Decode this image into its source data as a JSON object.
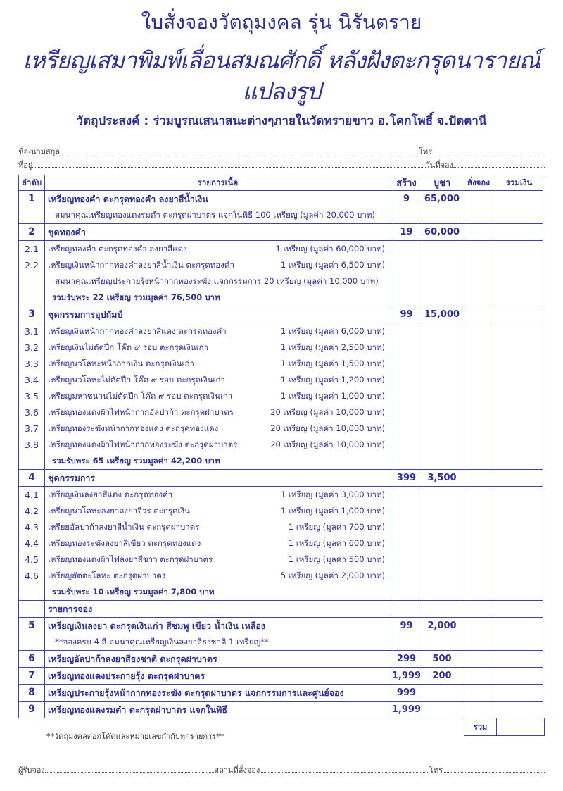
{
  "header": {
    "title": "ใบสั่งจองวัตถุมงคล รุ่น นิรันตราย",
    "subtitle": "เหรียญเสมาพิมพ์เลื่อนสมณศักดิ์ หลังฝังตะกรุดนารายณ์แปลงรูป",
    "purpose": "วัตถุประสงค์ : ร่วมบูรณเสนาสนะต่างๆภายในวัดทรายขาว อ.โคกโพธิ์ จ.ปัตตานี"
  },
  "form": {
    "name_label": "ชื่อ-นามสกุล",
    "phone_label": "โทร",
    "address_label": "ที่อยู่",
    "date_label": "วันที่จอง"
  },
  "table": {
    "headers": [
      "ลำดับ",
      "รายการเนื้อ",
      "สร้าง",
      "บูชา",
      "สั่งจอง",
      "รวมเงิน"
    ],
    "rows": [
      {
        "nums": [
          {
            "t": "1",
            "bold": true
          },
          {
            "t": ""
          }
        ],
        "lines": [
          {
            "text": "เหรียญทองคำ ตะกรุดทองคำ ลงยาสีน้ำเงิน",
            "type": "bold"
          },
          {
            "text": "สมนาคุณเหรียญทองแดงรมดำ ตะกรุดฝาบาตร แจกในพิธี 100 เหรียญ (มูลค่า 20,000 บาท)",
            "type": "ind"
          }
        ],
        "build": "9",
        "price": "65,000"
      },
      {
        "nums": [
          {
            "t": "2",
            "bold": true
          }
        ],
        "lines": [
          {
            "text": "ชุดทองคำ",
            "type": "bold"
          }
        ],
        "build": "19",
        "price": "60,000"
      },
      {
        "nums": [
          {
            "t": "2.1"
          },
          {
            "t": "2.2"
          },
          {
            "t": ""
          },
          {
            "t": ""
          }
        ],
        "lines": [
          {
            "text": "เหรียญทองคำ ตะกรุดทองคำ ลงยาสีแดง",
            "qty": "1 เหรียญ (มูลค่า 60,000 บาท)"
          },
          {
            "text": "เหรียญเงินหน้ากากทองคำลงยาสีน้ำเงิน ตะกรุดทองคำ",
            "qty": "1 เหรียญ (มูลค่า 6,500 บาท)"
          },
          {
            "text": "สมนาคุณเหรียญประกายรุ้งหน้ากากทองระฆัง แจกกรรมการ 20 เหรียญ (มูลค่า 10,000 บาท)",
            "type": "ind"
          },
          {
            "text": "รวมรับพระ 22 เหรียญ รวมมูลค่า 76,500 บาท",
            "type": "sum"
          }
        ],
        "build": "",
        "price": ""
      },
      {
        "nums": [
          {
            "t": "3",
            "bold": true
          }
        ],
        "lines": [
          {
            "text": "ชุดกรรมการอุปถัมป์",
            "type": "bold"
          }
        ],
        "build": "99",
        "price": "15,000"
      },
      {
        "nums": [
          {
            "t": "3.1"
          },
          {
            "t": "3.2"
          },
          {
            "t": "3.3"
          },
          {
            "t": "3.4"
          },
          {
            "t": "3.5"
          },
          {
            "t": "3.6"
          },
          {
            "t": "3.7"
          },
          {
            "t": "3.8"
          },
          {
            "t": ""
          }
        ],
        "lines": [
          {
            "text": "เหรียญเงินหน้ากากทองคำลงยาสีแดง  ตะกรุดทองคำ",
            "qty": "1 เหรียญ (มูลค่า 6,000 บาท)"
          },
          {
            "text": "เหรียญเงินไม่ตัดปีก โค๊ด ๙ รอบ ตะกรุดเงินเก่า",
            "qty": "1 เหรียญ (มูลค่า 2,500 บาท)"
          },
          {
            "text": "เหรียญนวโลหะหน้ากากเงิน ตะกรุดเงินเก่า",
            "qty": "1 เหรียญ (มูลค่า 1,500 บาท)"
          },
          {
            "text": "เหรียญนวโลหะไม่ตัดปีก โค๊ด ๙ รอบ ตะกรุดเงินเก่า",
            "qty": "1 เหรียญ (มูลค่า 1,200 บาท)"
          },
          {
            "text": "เหรียญมหาชนวนไม่ตัดปีก โค๊ด ๙ รอบ ตะกรุดเงินเก่า",
            "qty": "1 เหรียญ (มูลค่า 1,000 บาท)"
          },
          {
            "text": "เหรียญทองแดงผิวไฟหน้ากากอัลปาก้า ตะกรุดฝาบาตร",
            "qty": "20 เหรียญ (มูลค่า 10,000 บาท)"
          },
          {
            "text": "เหรียญทองระฆังหน้ากากทองแดง ตะกรุดทองแดง",
            "qty": "20 เหรียญ (มูลค่า 10,000 บาท)"
          },
          {
            "text": "เหรียญทองแดงผิวไฟหน้ากากทองระฆัง ตะกรุดฝาบาตร",
            "qty": "20 เหรียญ (มูลค่า 10,000 บาท)"
          },
          {
            "text": "รวมรับพระ 65 เหรียญ รวมมูลค่า 42,200 บาท",
            "type": "sum"
          }
        ],
        "build": "",
        "price": ""
      },
      {
        "nums": [
          {
            "t": "4",
            "bold": true
          }
        ],
        "lines": [
          {
            "text": "ชุดกรรมการ",
            "type": "bold"
          }
        ],
        "build": "399",
        "price": "3,500"
      },
      {
        "nums": [
          {
            "t": "4.1"
          },
          {
            "t": "4.2"
          },
          {
            "t": "4.3"
          },
          {
            "t": "4.4"
          },
          {
            "t": "4.5"
          },
          {
            "t": "4.6"
          },
          {
            "t": ""
          }
        ],
        "lines": [
          {
            "text": "เหรียญเงินลงยาสีแดง ตะกรุดทองคำ",
            "qty": "1 เหรียญ (มูลค่า 3,000 บาท)"
          },
          {
            "text": "เหรียญนวโลหะลงยาลงยาจีวร ตะกรุดเงิน",
            "qty": "1 เหรียญ (มูลค่า 1,000 บาท)"
          },
          {
            "text": "เหรียยอัลปาก้าลงยาสีน้ำเงิน ตะกรุดฝาบาตร",
            "qty": "1 เหรียญ (มูลค่า 700 บาท)"
          },
          {
            "text": "เหรียญทองระฆังลงยาสีเขียว ตะกรุดทองแดง",
            "qty": "1 เหรียญ (มูลค่า 600 บาท)"
          },
          {
            "text": "เหรียญทองแดงผิวไฟลงยาสีขาว ตะกรุดฝาบาตร",
            "qty": "1 เหรียญ (มูลค่า 500 บาท)"
          },
          {
            "text": "เหรียญสัตตะโลหะ ตะกรุดฝาบาตร",
            "qty": "5 เหรียญ (มูลค่า 2,000 บาท)"
          },
          {
            "text": "รวมรับพระ 10 เหรียญ รวมมูลค่า 7,800 บาท",
            "type": "sum"
          }
        ],
        "build": "",
        "price": ""
      },
      {
        "nums": [
          {
            "t": ""
          }
        ],
        "lines": [
          {
            "text": "รายการจอง",
            "type": "bold"
          }
        ],
        "build": "",
        "price": ""
      },
      {
        "nums": [
          {
            "t": "5",
            "bold": true
          },
          {
            "t": ""
          }
        ],
        "lines": [
          {
            "text": "เหรียญเงินลงยา ตะกรุดเงินเก่า  สีชมพู  เขียว  น้ำเงิน  เหลือง",
            "type": "bold"
          },
          {
            "text": "**จองครบ 4 สี สมนาคุณเหรียญเงินลงยาสีธงชาติ 1 เหรียญ**",
            "type": "ind"
          }
        ],
        "build": "99",
        "price": "2,000"
      },
      {
        "nums": [
          {
            "t": "6",
            "bold": true
          }
        ],
        "lines": [
          {
            "text": "เหรียญอัลปาก้าลงยาสีธงชาติ ตะกรุดฝาบาตร",
            "type": "bold"
          }
        ],
        "build": "299",
        "price": "500"
      },
      {
        "nums": [
          {
            "t": "7",
            "bold": true
          }
        ],
        "lines": [
          {
            "text": "เหรียญทองแดงประกายรุ้ง ตะกรุดฝาบาตร",
            "type": "bold"
          }
        ],
        "build": "1,999",
        "price": "200"
      },
      {
        "nums": [
          {
            "t": "8",
            "bold": true
          }
        ],
        "lines": [
          {
            "text": "เหรียญประกายรุ้งหน้ากากทองระฆัง ตะกรุดฝาบาตร แจกกรรมการและศูนย์จอง",
            "type": "bold"
          }
        ],
        "build": "999",
        "price": ""
      },
      {
        "nums": [
          {
            "t": "9",
            "bold": true
          }
        ],
        "lines": [
          {
            "text": "เหรียญทองแดงรมดำ ตะกรุดฝาบาตร แจกในพิธี",
            "type": "bold"
          }
        ],
        "build": "1,999",
        "price": ""
      }
    ],
    "total_label": "รวม"
  },
  "footer": {
    "note": "**วัตถุมงคลตอกโค๊ดและหมายเลขกำกับทุกรายการ**",
    "receiver_label": "ผู้รับจอง",
    "place_label": "สถานที่สั่งจอง",
    "phone_label": "โทร"
  }
}
